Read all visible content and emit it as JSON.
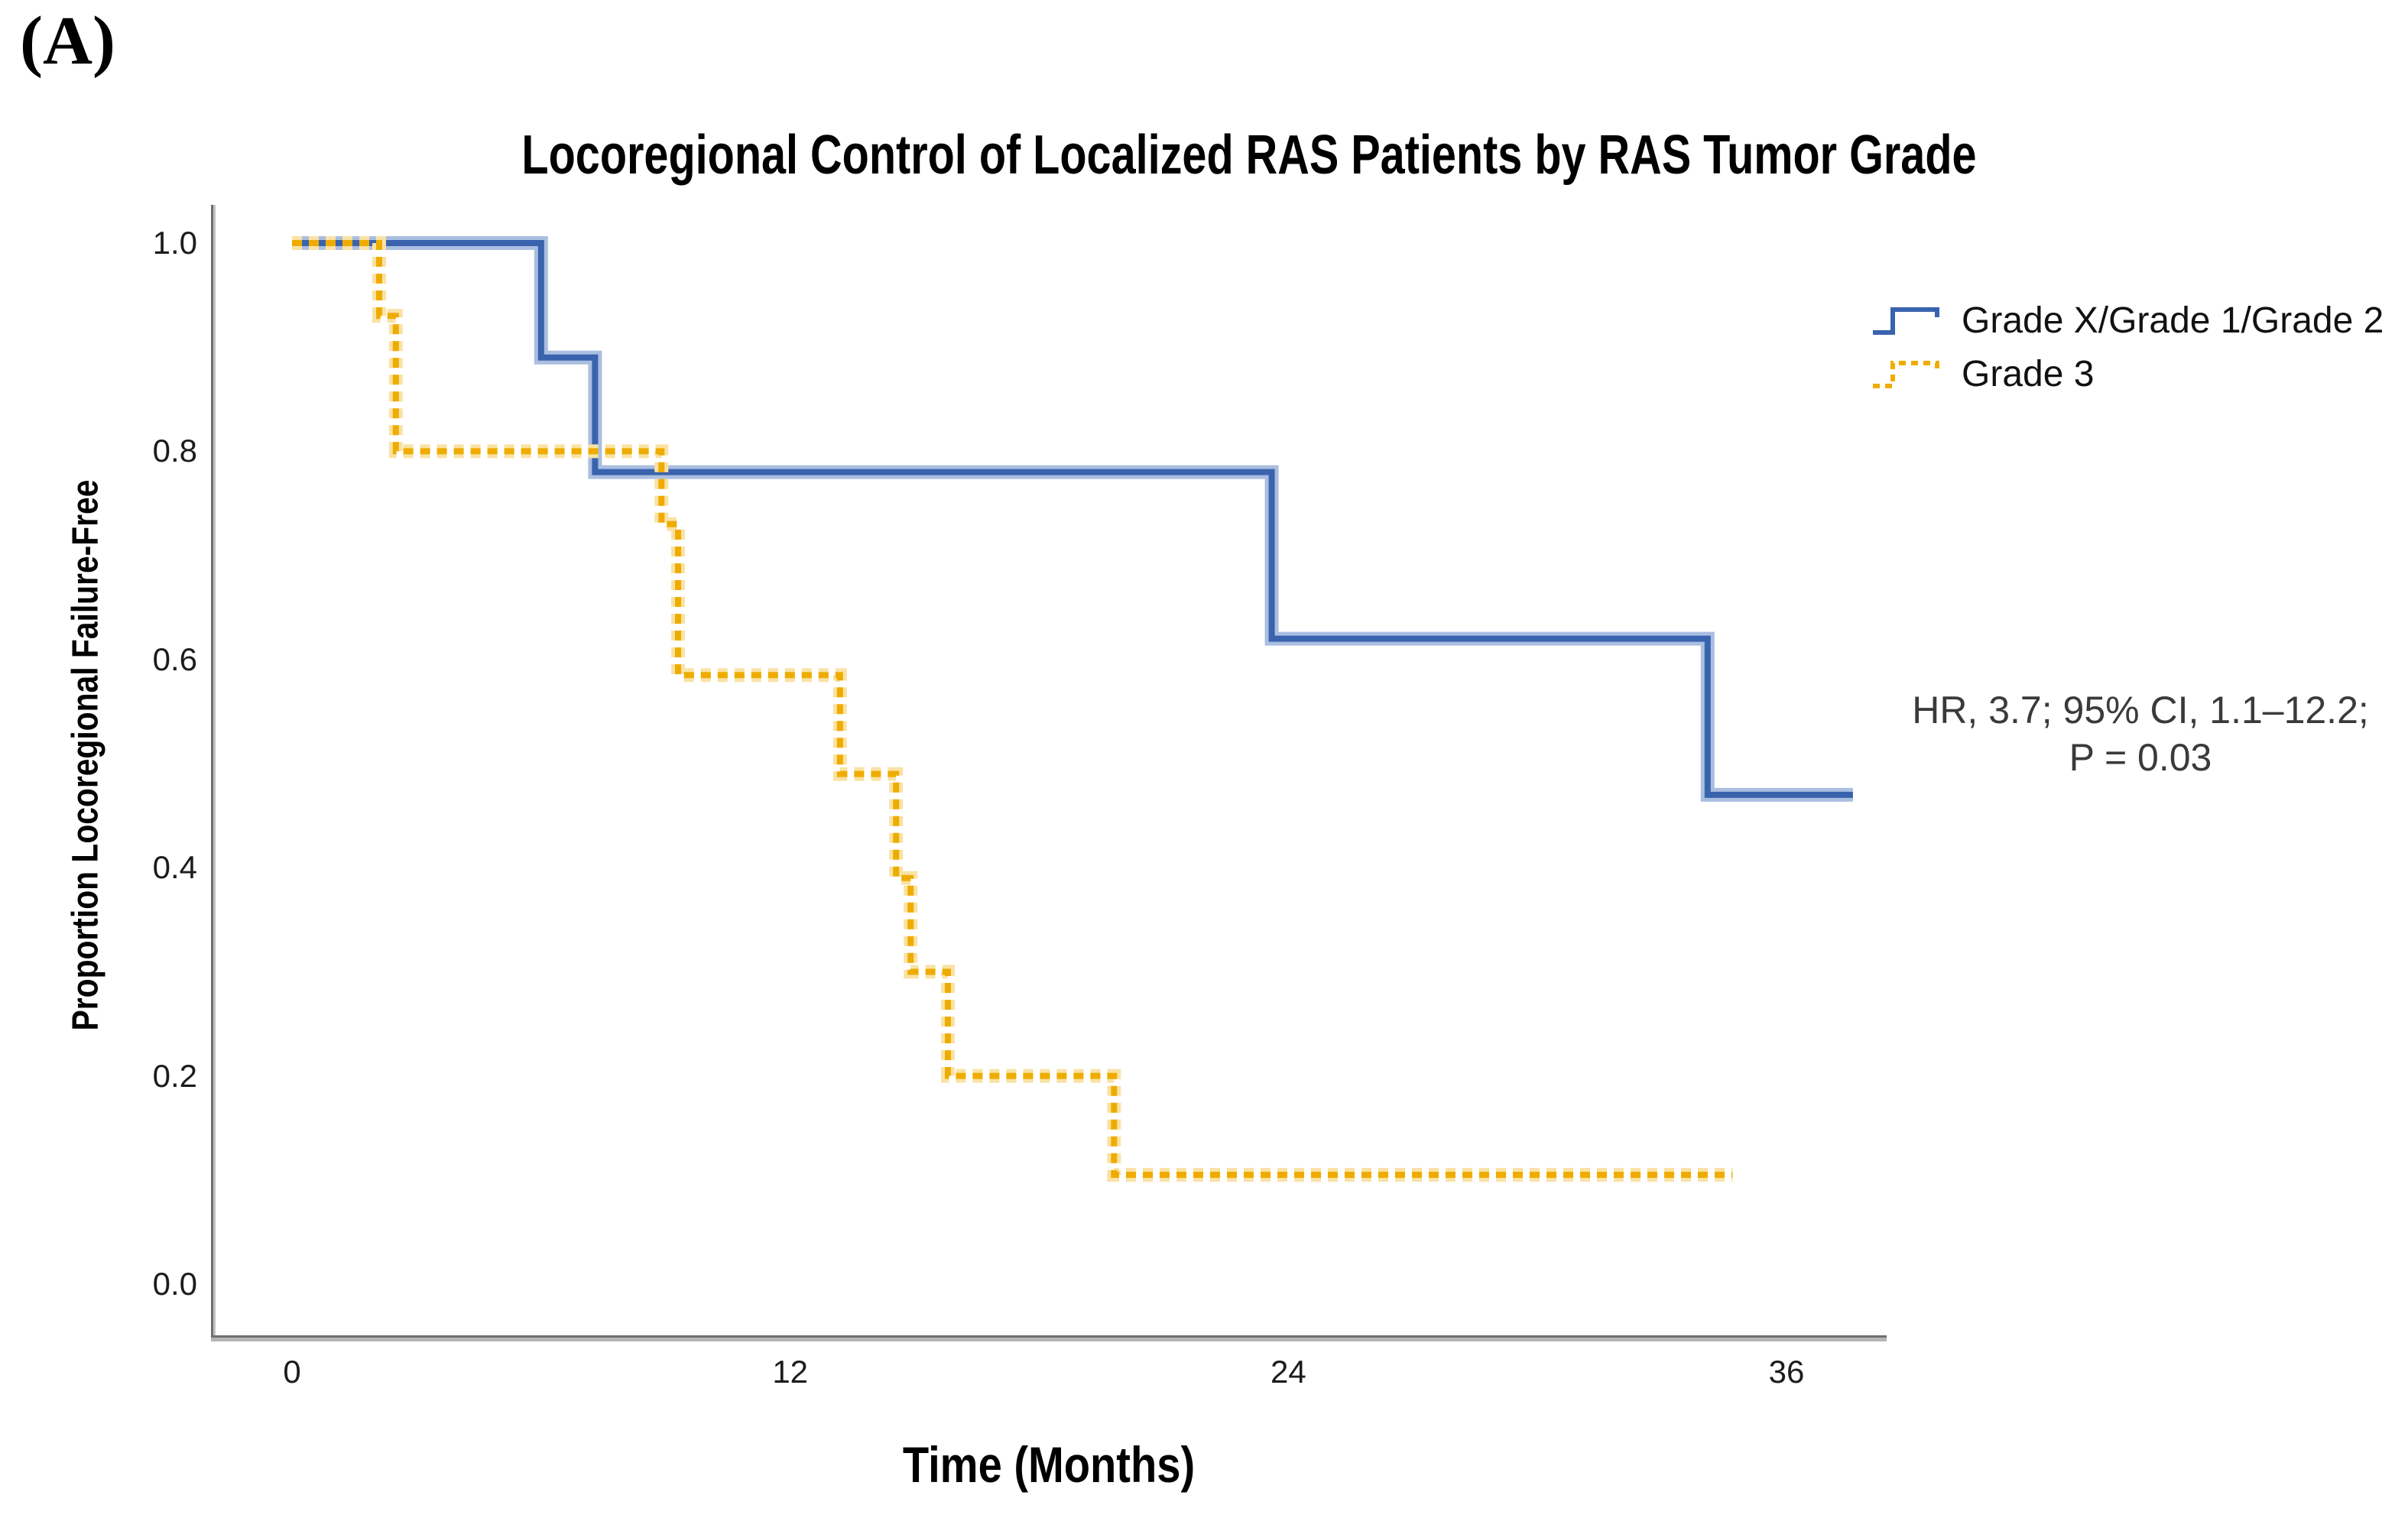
{
  "panel_label": "(A)",
  "title": "Locoregional Control of Localized RAS Patients by RAS Tumor Grade",
  "y_axis": {
    "label": "Proportion Locoregional Failure-Free",
    "tick_labels": [
      "1.0",
      "0.8",
      "0.6",
      "0.4",
      "0.2",
      "0.0"
    ],
    "tick_values": [
      1.0,
      0.8,
      0.6,
      0.4,
      0.2,
      0.0
    ]
  },
  "x_axis": {
    "label": "Time (Months)",
    "tick_labels": [
      "0",
      "12",
      "24",
      "36"
    ],
    "tick_values": [
      0,
      12,
      24,
      36
    ]
  },
  "legend": {
    "items": [
      {
        "label": "Grade X/Grade 1/Grade 2",
        "color": "#3A63AE",
        "halo": "#AABEE0",
        "style": "solid"
      },
      {
        "label": "Grade 3",
        "color": "#EFAC00",
        "halo": "#F9E2A4",
        "style": "dashed"
      }
    ]
  },
  "annotation": {
    "line1": "HR, 3.7; 95% CI, 1.1–12.2;",
    "line2": "P = 0.03"
  },
  "chart_data": {
    "type": "line",
    "subtype": "kaplan-meier-step",
    "title": "Locoregional Control of Localized RAS Patients by RAS Tumor Grade",
    "xlabel": "Time (Months)",
    "ylabel": "Proportion Locoregional Failure-Free",
    "xlim": [
      0,
      38.3
    ],
    "ylim": [
      0.0,
      1.05
    ],
    "x_ticks": [
      0,
      12,
      24,
      36
    ],
    "y_ticks": [
      1.0,
      0.8,
      0.6,
      0.4,
      0.2,
      0.0
    ],
    "grid": false,
    "legend_position": "right",
    "annotation_text": "HR, 3.7; 95% CI, 1.1–12.2; P = 0.03",
    "series": [
      {
        "name": "Grade X/Grade 1/Grade 2",
        "color": "#3A63AE",
        "halo": "#AABEE0",
        "style": "solid",
        "steps": [
          [
            0,
            1.0
          ],
          [
            6.0,
            0.89
          ],
          [
            7.3,
            0.78
          ],
          [
            23.6,
            0.62
          ],
          [
            34.1,
            0.47
          ]
        ],
        "end_x": 37.6
      },
      {
        "name": "Grade 3",
        "color": "#EFAC00",
        "halo": "#F9E2A4",
        "style": "dashed",
        "steps": [
          [
            0,
            1.0
          ],
          [
            2.1,
            0.93
          ],
          [
            2.5,
            0.8
          ],
          [
            8.9,
            0.73
          ],
          [
            9.3,
            0.585
          ],
          [
            13.2,
            0.49
          ],
          [
            14.55,
            0.39
          ],
          [
            14.9,
            0.3
          ],
          [
            15.8,
            0.2
          ],
          [
            19.8,
            0.105
          ]
        ],
        "end_x": 34.7
      }
    ]
  }
}
